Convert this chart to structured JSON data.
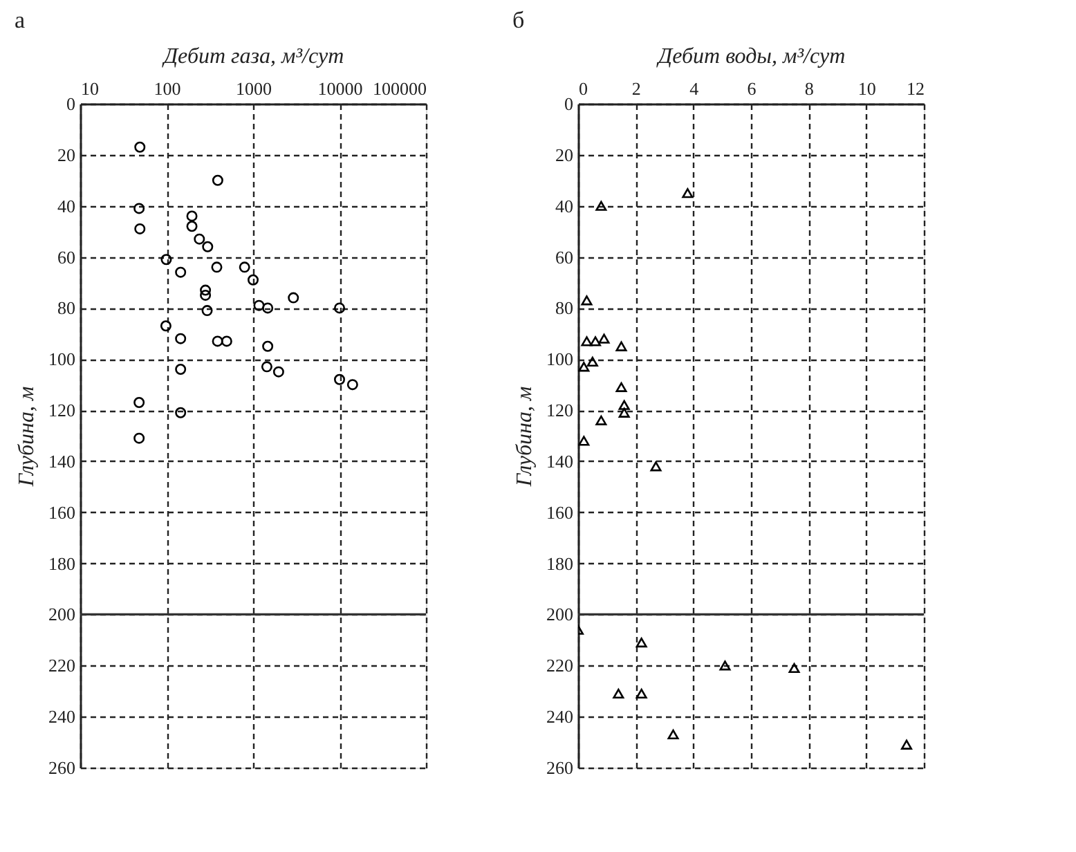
{
  "chart_data": [
    {
      "type": "scatter",
      "title": "а",
      "xlabel": "Дебит газа, м³/сут",
      "ylabel": "Глубина, м",
      "log": "x",
      "grid": true,
      "marker": "circle",
      "xlim": [
        10,
        100000
      ],
      "xticks": [
        10,
        100,
        1000,
        10000,
        100000
      ],
      "ylim": [
        260,
        0
      ],
      "yticks": [
        0,
        20,
        40,
        60,
        80,
        100,
        120,
        140,
        160,
        180,
        200,
        220,
        240,
        260
      ],
      "ref_lines": [
        {
          "axis": "y",
          "value": 200,
          "color": "#333333"
        }
      ],
      "series": [
        {
          "color": "#000000",
          "x": [
            49,
            390,
            48,
            49,
            196,
            196,
            239,
            298,
            99,
            380,
            145,
            797,
            1000,
            281,
            281,
            2924,
            1170,
            1476,
            10000,
            294,
            98,
            145,
            388,
            495,
            1476,
            145,
            1443,
            1973,
            10000,
            14150,
            48,
            48,
            145
          ],
          "values": [
            17,
            30,
            41,
            49,
            44,
            48,
            53,
            56,
            61,
            64,
            66,
            64,
            69,
            73,
            75,
            76,
            79,
            80,
            80,
            81,
            87,
            92,
            93,
            93,
            95,
            104,
            103,
            105,
            108,
            110,
            117,
            131,
            121
          ]
        }
      ]
    },
    {
      "type": "scatter",
      "title": "б",
      "xlabel": "Дебит воды, м³/сут",
      "ylabel": "Глубина, м",
      "grid": true,
      "marker": "triangle",
      "xlim": [
        0,
        12
      ],
      "xticks": [
        0,
        2,
        4,
        6,
        8,
        10,
        12
      ],
      "ylim": [
        260,
        0
      ],
      "yticks": [
        0,
        20,
        40,
        60,
        80,
        100,
        120,
        140,
        160,
        180,
        200,
        220,
        240,
        260
      ],
      "ref_lines": [
        {
          "axis": "y",
          "value": 200,
          "color": "#333333"
        }
      ],
      "series": [
        {
          "color": "#000000",
          "x": [
            0.8,
            3.8,
            0.3,
            0.3,
            0.6,
            0.9,
            1.5,
            0.2,
            0.5,
            1.5,
            1.6,
            1.6,
            0.8,
            0.2,
            2.7,
            0.0,
            2.2,
            5.1,
            7.5,
            1.4,
            2.2,
            3.3,
            11.4
          ],
          "values": [
            40,
            35,
            77,
            93,
            93,
            92,
            95,
            103,
            101,
            111,
            118,
            121,
            124,
            132,
            142,
            206,
            211,
            220,
            221,
            231,
            231,
            247,
            251
          ]
        }
      ]
    }
  ]
}
